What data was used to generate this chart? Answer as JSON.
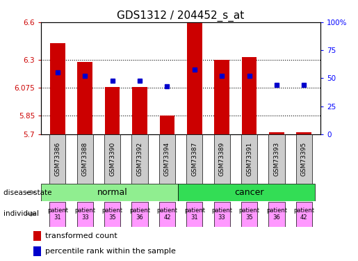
{
  "title": "GDS1312 / 204452_s_at",
  "samples": [
    "GSM73386",
    "GSM73388",
    "GSM73390",
    "GSM73392",
    "GSM73394",
    "GSM73387",
    "GSM73389",
    "GSM73391",
    "GSM73393",
    "GSM73395"
  ],
  "transformed_count": [
    6.43,
    6.28,
    6.08,
    6.08,
    5.85,
    6.6,
    6.3,
    6.32,
    5.72,
    5.72
  ],
  "percentile_rank": [
    55,
    52,
    48,
    48,
    43,
    58,
    52,
    52,
    44,
    44
  ],
  "bar_bottom": 5.7,
  "ylim_left": [
    5.7,
    6.6
  ],
  "ylim_right": [
    0,
    100
  ],
  "yticks_left": [
    5.7,
    5.85,
    6.075,
    6.3,
    6.6
  ],
  "yticks_right": [
    0,
    25,
    50,
    75,
    100
  ],
  "ytick_labels_left": [
    "5.7",
    "5.85",
    "6.075",
    "6.3",
    "6.6"
  ],
  "ytick_labels_right": [
    "0",
    "25",
    "50",
    "75",
    "100%"
  ],
  "hlines": [
    5.85,
    6.075,
    6.3
  ],
  "disease_state_colors": [
    "#90EE90",
    "#33DD55"
  ],
  "individual_labels": [
    "patient\n31",
    "patient\n33",
    "patient\n35",
    "patient\n36",
    "patient\n42",
    "patient\n31",
    "patient\n33",
    "patient\n35",
    "patient\n36",
    "patient\n42"
  ],
  "individual_bg_color": "#FF99FF",
  "bar_color": "#CC0000",
  "dot_color": "#0000CC",
  "sample_bg_color": "#CCCCCC",
  "title_fontsize": 11,
  "legend_items": [
    "transformed count",
    "percentile rank within the sample"
  ]
}
